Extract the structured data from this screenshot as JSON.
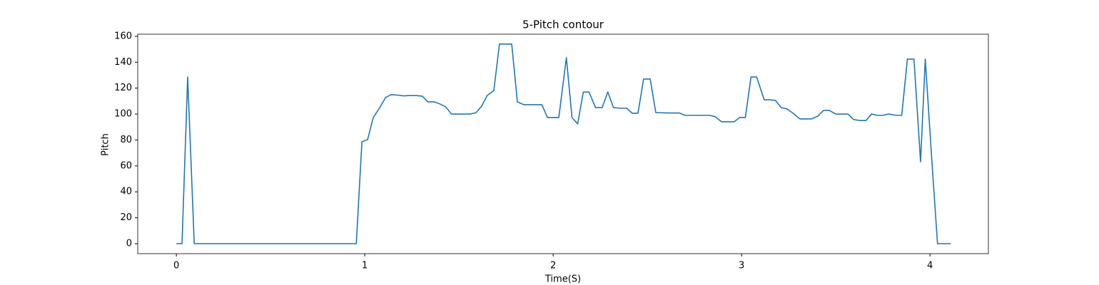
{
  "chart_data": {
    "type": "line",
    "title": "5-Pitch contour",
    "x_label": "Time(S)",
    "y_label": "Pitch",
    "x": [
      0,
      0.03,
      0.06,
      0.095,
      0.955,
      0.985,
      1.015,
      1.045,
      1.08,
      1.11,
      1.14,
      1.175,
      1.205,
      1.24,
      1.27,
      1.305,
      1.335,
      1.37,
      1.4,
      1.43,
      1.46,
      1.495,
      1.53,
      1.56,
      1.59,
      1.62,
      1.65,
      1.685,
      1.715,
      1.745,
      1.78,
      1.81,
      1.845,
      1.875,
      1.905,
      1.94,
      1.97,
      2.0,
      2.03,
      2.07,
      2.1,
      2.13,
      2.16,
      2.19,
      2.225,
      2.26,
      2.29,
      2.32,
      2.35,
      2.39,
      2.42,
      2.45,
      2.48,
      2.515,
      2.545,
      2.575,
      2.605,
      2.64,
      2.67,
      2.7,
      2.73,
      2.765,
      2.8,
      2.83,
      2.86,
      2.894,
      2.925,
      2.96,
      2.99,
      3.02,
      3.05,
      3.08,
      3.12,
      3.15,
      3.18,
      3.21,
      3.24,
      3.27,
      3.31,
      3.34,
      3.37,
      3.405,
      3.435,
      3.465,
      3.5,
      3.53,
      3.565,
      3.595,
      3.63,
      3.66,
      3.69,
      3.72,
      3.75,
      3.78,
      3.82,
      3.85,
      3.88,
      3.915,
      3.95,
      3.975,
      4.01,
      4.04,
      4.075,
      4.11
    ],
    "series": [
      {
        "name": "Pitch",
        "color": "#1f77b4",
        "values": [
          0,
          0,
          128.6,
          0,
          0,
          78.6,
          80.3,
          97.3,
          105,
          112.7,
          115,
          114.6,
          114,
          114.3,
          114.3,
          113.8,
          109.4,
          109.4,
          107.7,
          105.5,
          100,
          100,
          100,
          100,
          101,
          106,
          114.3,
          118.2,
          154,
          154,
          154,
          109.4,
          107.2,
          107.2,
          107.2,
          107.2,
          97.3,
          97.3,
          97.3,
          143.5,
          97.3,
          92.4,
          117,
          117,
          105,
          105,
          117,
          105,
          104.5,
          104.5,
          100.6,
          100.6,
          127,
          127,
          101,
          101,
          100.8,
          100.8,
          100.8,
          99,
          99,
          99,
          99,
          99,
          98,
          94,
          94,
          94,
          97.3,
          97.3,
          128.6,
          128.6,
          111,
          111,
          110.5,
          105,
          104,
          101,
          96.2,
          96.2,
          96.2,
          98.4,
          102.8,
          102.8,
          100,
          100,
          100,
          95.7,
          95,
          95,
          100,
          99,
          99,
          100,
          99,
          99,
          142.4,
          142.4,
          63.2,
          142.4,
          63.8,
          0,
          0,
          0
        ]
      }
    ],
    "xlim": [
      -0.205,
      4.31
    ],
    "ylim": [
      -7.7,
      161.6
    ],
    "xticks": [
      0,
      1,
      2,
      3,
      4
    ],
    "yticks": [
      0,
      20,
      40,
      60,
      80,
      100,
      120,
      140,
      160
    ]
  }
}
